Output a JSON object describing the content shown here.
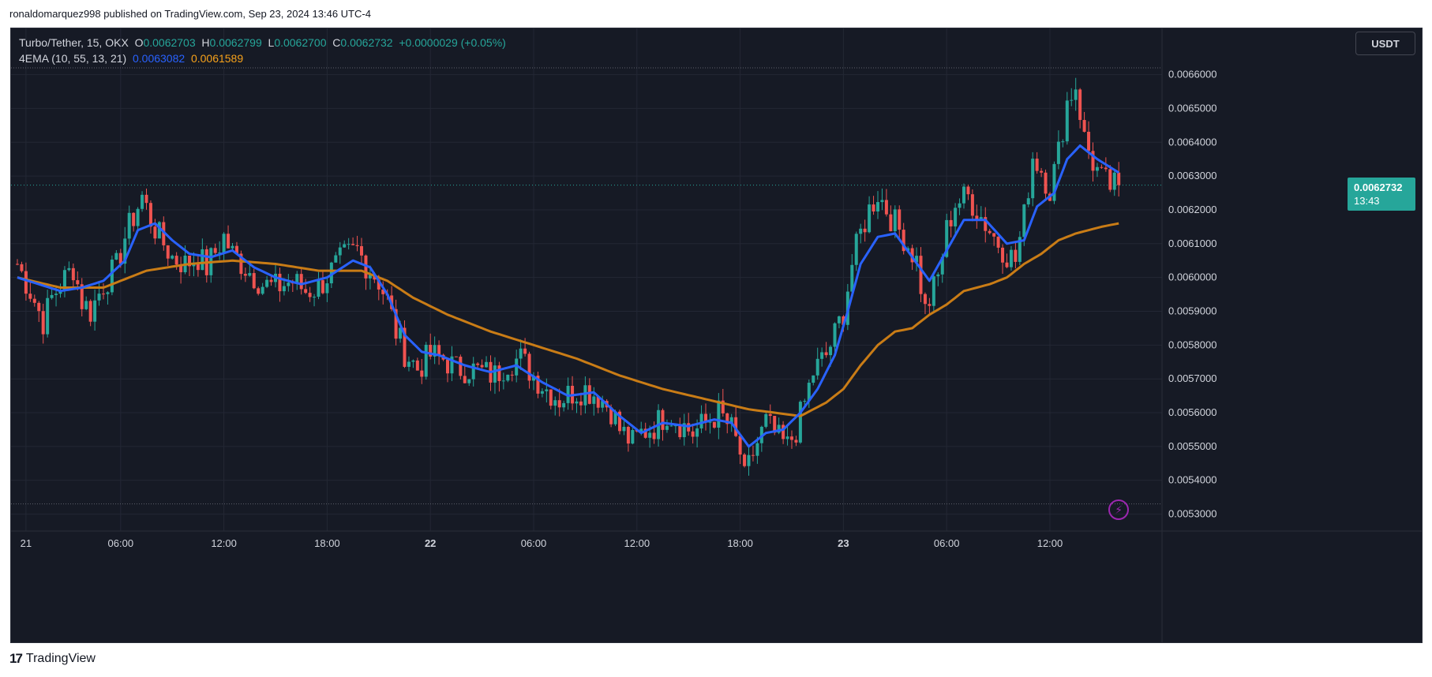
{
  "header": {
    "publisher_line": "ronaldomarquez998 published on TradingView.com, Sep 23, 2024 13:46 UTC-4"
  },
  "legend": {
    "symbol": "Turbo/Tether, 15, OKX",
    "o_label": "O",
    "o_value": "0.0062703",
    "h_label": "H",
    "h_value": "0.0062799",
    "l_label": "L",
    "l_value": "0.0062700",
    "c_label": "C",
    "c_value": "0.0062732",
    "change": "+0.0000029 (+0.05%)",
    "indicator_name": "4EMA (10, 55, 13, 21)",
    "ema_fast_value": "0.0063082",
    "ema_slow_value": "0.0061589"
  },
  "currency_button": "USDT",
  "price_tag": {
    "price": "0.0062732",
    "countdown": "13:43"
  },
  "footer": {
    "brand": "TradingView"
  },
  "colors": {
    "background": "#161a25",
    "up": "#26a69a",
    "down": "#ef5350",
    "ema_fast": "#2962ff",
    "ema_slow": "#c97c16",
    "grid": "#232734",
    "text": "#d1d4dc"
  },
  "icons": {
    "bolt": "lightning-bolt-icon",
    "logo": "tradingview-logo-icon"
  },
  "chart_data": {
    "type": "candlestick",
    "title": "Turbo/Tether, 15, OKX",
    "ylim": [
      0.00525,
      0.00669
    ],
    "y_ticks": [
      "0.0053000",
      "0.0054000",
      "0.0055000",
      "0.0056000",
      "0.0057000",
      "0.0058000",
      "0.0059000",
      "0.0060000",
      "0.0061000",
      "0.0062000",
      "0.0063000",
      "0.0064000",
      "0.0065000",
      "0.0066000"
    ],
    "y_tick_values": [
      0.0053,
      0.0054,
      0.0055,
      0.0056,
      0.0057,
      0.0058,
      0.0059,
      0.006,
      0.0061,
      0.0062,
      0.0063,
      0.0064,
      0.0065,
      0.0066
    ],
    "x_ticks": [
      {
        "label": "21",
        "bar": 2,
        "bold": false
      },
      {
        "label": "06:00",
        "bar": 24,
        "bold": false
      },
      {
        "label": "12:00",
        "bar": 48,
        "bold": false
      },
      {
        "label": "18:00",
        "bar": 72,
        "bold": false
      },
      {
        "label": "22",
        "bar": 96,
        "bold": true
      },
      {
        "label": "06:00",
        "bar": 120,
        "bold": false
      },
      {
        "label": "12:00",
        "bar": 144,
        "bold": false
      },
      {
        "label": "18:00",
        "bar": 168,
        "bold": false
      },
      {
        "label": "23",
        "bar": 192,
        "bold": true
      },
      {
        "label": "06:00",
        "bar": 216,
        "bold": false
      },
      {
        "label": "12:00",
        "bar": 240,
        "bold": false
      }
    ],
    "series": [
      {
        "name": "4EMA (10, 55, 13, 21) fast",
        "color": "#2962ff"
      },
      {
        "name": "4EMA (10, 55, 13, 21) slow",
        "color": "#c97c16"
      }
    ],
    "last_price": 0.0062732,
    "range_high_line": 0.0066201,
    "range_low_line": 0.0053302,
    "close_path": [
      [
        0,
        0.00604
      ],
      [
        3,
        0.00596
      ],
      [
        6,
        0.00587
      ],
      [
        8,
        0.00594
      ],
      [
        10,
        0.00598
      ],
      [
        13,
        0.00603
      ],
      [
        15,
        0.00593
      ],
      [
        17,
        0.0059
      ],
      [
        20,
        0.00598
      ],
      [
        23,
        0.00603
      ],
      [
        25,
        0.00612
      ],
      [
        29,
        0.00624
      ],
      [
        31,
        0.00617
      ],
      [
        33,
        0.00612
      ],
      [
        36,
        0.00606
      ],
      [
        39,
        0.00604
      ],
      [
        42,
        0.00606
      ],
      [
        44,
        0.00603
      ],
      [
        48,
        0.00612
      ],
      [
        50,
        0.00607
      ],
      [
        53,
        0.00603
      ],
      [
        57,
        0.00598
      ],
      [
        60,
        0.00597
      ],
      [
        64,
        0.00599
      ],
      [
        67,
        0.00596
      ],
      [
        70,
        0.00597
      ],
      [
        73,
        0.00602
      ],
      [
        76,
        0.00606
      ],
      [
        79,
        0.00608
      ],
      [
        81,
        0.00604
      ],
      [
        84,
        0.00599
      ],
      [
        86,
        0.00593
      ],
      [
        88,
        0.00584
      ],
      [
        90,
        0.00578
      ],
      [
        93,
        0.00573
      ],
      [
        96,
        0.00577
      ],
      [
        99,
        0.00576
      ],
      [
        102,
        0.00573
      ],
      [
        105,
        0.00573
      ],
      [
        108,
        0.00572
      ],
      [
        111,
        0.00571
      ],
      [
        114,
        0.00575
      ],
      [
        117,
        0.00576
      ],
      [
        120,
        0.00571
      ],
      [
        123,
        0.00567
      ],
      [
        126,
        0.00564
      ],
      [
        129,
        0.00566
      ],
      [
        132,
        0.00567
      ],
      [
        135,
        0.00565
      ],
      [
        138,
        0.00561
      ],
      [
        140,
        0.00555
      ],
      [
        143,
        0.00551
      ],
      [
        145,
        0.00554
      ],
      [
        148,
        0.00556
      ],
      [
        151,
        0.0056
      ],
      [
        154,
        0.00557
      ],
      [
        157,
        0.00554
      ],
      [
        160,
        0.00557
      ],
      [
        163,
        0.0056
      ],
      [
        166,
        0.00555
      ],
      [
        168,
        0.00548
      ],
      [
        169,
        0.0054
      ],
      [
        171,
        0.00548
      ],
      [
        174,
        0.00557
      ],
      [
        177,
        0.00552
      ],
      [
        179,
        0.0055
      ],
      [
        181,
        0.00555
      ],
      [
        183,
        0.00563
      ],
      [
        185,
        0.00572
      ],
      [
        188,
        0.00577
      ],
      [
        190,
        0.00583
      ],
      [
        192,
        0.0059
      ],
      [
        194,
        0.00604
      ],
      [
        196,
        0.00613
      ],
      [
        198,
        0.0062
      ],
      [
        200,
        0.00625
      ],
      [
        203,
        0.00618
      ],
      [
        206,
        0.00612
      ],
      [
        209,
        0.00605
      ],
      [
        211,
        0.0059
      ],
      [
        214,
        0.006
      ],
      [
        216,
        0.00614
      ],
      [
        218,
        0.00622
      ],
      [
        221,
        0.00624
      ],
      [
        224,
        0.00618
      ],
      [
        227,
        0.00612
      ],
      [
        230,
        0.00607
      ],
      [
        232,
        0.00605
      ],
      [
        234,
        0.00618
      ],
      [
        236,
        0.00636
      ],
      [
        238,
        0.00632
      ],
      [
        240,
        0.00626
      ],
      [
        242,
        0.00637
      ],
      [
        244,
        0.00652
      ],
      [
        246,
        0.00657
      ],
      [
        248,
        0.00641
      ],
      [
        250,
        0.00634
      ],
      [
        252,
        0.00629
      ],
      [
        254,
        0.00627
      ],
      [
        256,
        0.00627
      ]
    ],
    "ema_fast_path": [
      [
        0,
        0.006
      ],
      [
        5,
        0.00598
      ],
      [
        10,
        0.00596
      ],
      [
        15,
        0.00597
      ],
      [
        20,
        0.00599
      ],
      [
        25,
        0.00605
      ],
      [
        28,
        0.00614
      ],
      [
        32,
        0.00616
      ],
      [
        36,
        0.00611
      ],
      [
        40,
        0.00607
      ],
      [
        45,
        0.00606
      ],
      [
        50,
        0.00608
      ],
      [
        55,
        0.00603
      ],
      [
        60,
        0.006
      ],
      [
        66,
        0.00598
      ],
      [
        72,
        0.006
      ],
      [
        78,
        0.00605
      ],
      [
        82,
        0.00603
      ],
      [
        86,
        0.00595
      ],
      [
        90,
        0.00583
      ],
      [
        94,
        0.00578
      ],
      [
        98,
        0.00577
      ],
      [
        104,
        0.00574
      ],
      [
        110,
        0.00572
      ],
      [
        116,
        0.00574
      ],
      [
        122,
        0.00569
      ],
      [
        128,
        0.00565
      ],
      [
        134,
        0.00566
      ],
      [
        140,
        0.00559
      ],
      [
        145,
        0.00554
      ],
      [
        150,
        0.00557
      ],
      [
        156,
        0.00556
      ],
      [
        162,
        0.00558
      ],
      [
        166,
        0.00557
      ],
      [
        170,
        0.0055
      ],
      [
        174,
        0.00554
      ],
      [
        178,
        0.00555
      ],
      [
        182,
        0.0056
      ],
      [
        186,
        0.00567
      ],
      [
        190,
        0.00577
      ],
      [
        193,
        0.0059
      ],
      [
        196,
        0.00604
      ],
      [
        200,
        0.00612
      ],
      [
        204,
        0.00613
      ],
      [
        208,
        0.00606
      ],
      [
        212,
        0.00599
      ],
      [
        216,
        0.00608
      ],
      [
        220,
        0.00617
      ],
      [
        225,
        0.00617
      ],
      [
        230,
        0.0061
      ],
      [
        234,
        0.00611
      ],
      [
        237,
        0.00621
      ],
      [
        241,
        0.00625
      ],
      [
        244,
        0.00635
      ],
      [
        247,
        0.00639
      ],
      [
        251,
        0.00635
      ],
      [
        256,
        0.00631
      ]
    ],
    "ema_slow_path": [
      [
        0,
        0.006
      ],
      [
        10,
        0.00597
      ],
      [
        20,
        0.00597
      ],
      [
        30,
        0.00602
      ],
      [
        40,
        0.00604
      ],
      [
        50,
        0.00605
      ],
      [
        60,
        0.00604
      ],
      [
        70,
        0.00602
      ],
      [
        80,
        0.00602
      ],
      [
        86,
        0.00599
      ],
      [
        92,
        0.00594
      ],
      [
        100,
        0.00589
      ],
      [
        110,
        0.00584
      ],
      [
        120,
        0.0058
      ],
      [
        130,
        0.00576
      ],
      [
        140,
        0.00571
      ],
      [
        150,
        0.00567
      ],
      [
        160,
        0.00564
      ],
      [
        170,
        0.00561
      ],
      [
        176,
        0.0056
      ],
      [
        182,
        0.00559
      ],
      [
        188,
        0.00563
      ],
      [
        192,
        0.00567
      ],
      [
        196,
        0.00574
      ],
      [
        200,
        0.0058
      ],
      [
        204,
        0.00584
      ],
      [
        208,
        0.00585
      ],
      [
        212,
        0.00589
      ],
      [
        216,
        0.00592
      ],
      [
        220,
        0.00596
      ],
      [
        226,
        0.00598
      ],
      [
        230,
        0.006
      ],
      [
        234,
        0.00604
      ],
      [
        238,
        0.00607
      ],
      [
        242,
        0.00611
      ],
      [
        246,
        0.00613
      ],
      [
        252,
        0.00615
      ],
      [
        256,
        0.00616
      ]
    ]
  }
}
